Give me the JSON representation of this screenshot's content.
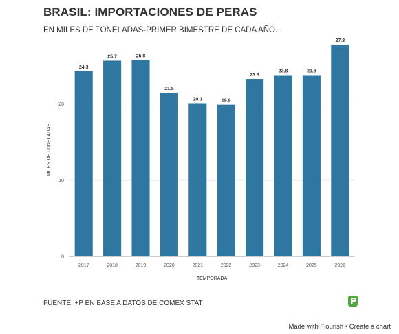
{
  "header": {
    "title": "BRASIL: IMPORTACIONES DE PERAS",
    "subtitle": "EN MILES DE TONELADAS-PRIMER BIMESTRE DE CADA AÑO."
  },
  "chart_data": {
    "type": "bar",
    "categories": [
      "2017",
      "2018",
      "2019",
      "2020",
      "2021",
      "2022",
      "2023",
      "2024",
      "2025",
      "2026"
    ],
    "values": [
      24.3,
      25.7,
      25.8,
      21.5,
      20.1,
      19.9,
      23.3,
      23.8,
      23.8,
      27.8
    ],
    "data_labels": [
      "24.3",
      "25.7",
      "25.8",
      "21.5",
      "20.1",
      "19.9",
      "23.3",
      "23.8",
      "23.8",
      "27.8"
    ],
    "xlabel": "TEMPORADA",
    "ylabel": "MILES DE TONELADAS",
    "ylim": [
      0,
      28
    ],
    "yticks": [
      0,
      10,
      20
    ],
    "grid": true,
    "bar_color": "#2f77a1"
  },
  "footer": {
    "source": "FUENTE: +P EN BASE A DATOS DE COMEX STAT",
    "made_with": "Made with Flourish",
    "separator": "•",
    "create_link": "Create a chart"
  }
}
